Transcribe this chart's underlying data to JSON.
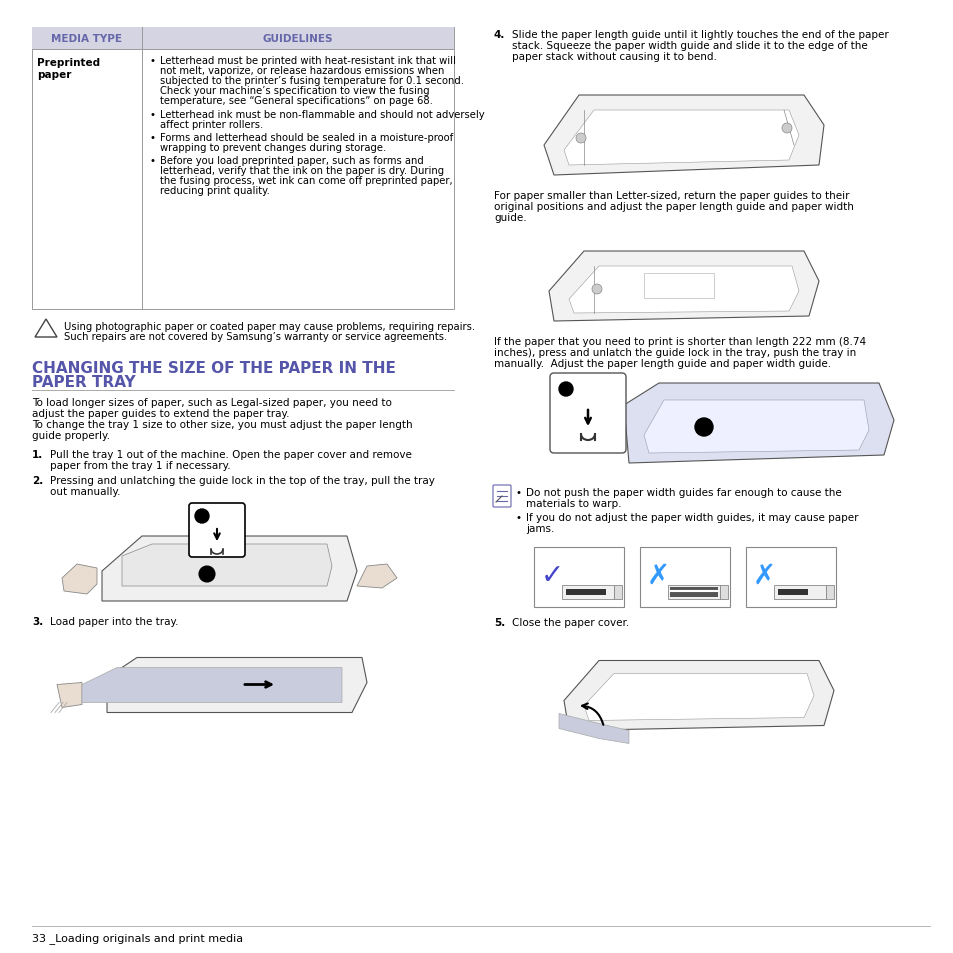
{
  "page_bg": "#ffffff",
  "header_color": "#6666aa",
  "header_bg": "#d8d8e8",
  "title_color": "#5555aa",
  "table_col1_label": "Preprinted\npaper",
  "table_bullets": [
    "Letterhead must be printed with heat-resistant ink that will not melt, vaporize, or release hazardous emissions when subjected to the printer’s fusing temperature for 0.1 second. Check your machine’s specification to view the fusing temperature, see “General specifications” on page 68.",
    "Letterhead ink must be non-flammable and should not adversely affect printer rollers.",
    "Forms and letterhead should be sealed in a moisture-proof wrapping to prevent changes during storage.",
    "Before you load preprinted paper, such as forms and letterhead, verify that the ink on the paper is dry. During the fusing process, wet ink can come off preprinted paper, reducing print quality."
  ],
  "warning_text": "Using photographic paper or coated paper may cause problems, requiring repairs. Such repairs are not covered by Samsung’s warranty or service agreements.",
  "section_title_line1": "CHANGING THE SIZE OF THE PAPER IN THE",
  "section_title_line2": "PAPER TRAY",
  "intro_lines": [
    "To load longer sizes of paper, such as Legal-sized paper, you need to",
    "adjust the paper guides to extend the paper tray.",
    "To change the tray 1 size to other size, you must adjust the paper length",
    "guide properly."
  ],
  "step1_lines": [
    "Pull the tray 1 out of the machine. Open the paper cover and remove",
    "paper from the tray 1 if necessary."
  ],
  "step2_lines": [
    "Pressing and unlatching the guide lock in the top of the tray, pull the tray",
    "out manually."
  ],
  "step3_text": "Load paper into the tray.",
  "step4_lines": [
    "Slide the paper length guide until it lightly touches the end of the paper",
    "stack. Squeeze the paper width guide and slide it to the edge of the",
    "paper stack without causing it to bend."
  ],
  "text_after_img1_lines": [
    "For paper smaller than Letter-sized, return the paper guides to their",
    "original positions and adjust the paper length guide and paper width",
    "guide."
  ],
  "text_after_img2_lines": [
    "If the paper that you need to print is shorter than length 222 mm (8.74",
    "inches), press and unlatch the guide lock in the tray, push the tray in",
    "manually.  Adjust the paper length guide and paper width guide."
  ],
  "note_bullet1_lines": [
    "Do not push the paper width guides far enough to cause the",
    "materials to warp."
  ],
  "note_bullet2_lines": [
    "If you do not adjust the paper width guides, it may cause paper",
    "jams."
  ],
  "step5_text": "Close the paper cover.",
  "footer_text": "33 _Loading originals and print media",
  "mark_colors": [
    "#4444cc",
    "#3399ff",
    "#3399ff"
  ]
}
